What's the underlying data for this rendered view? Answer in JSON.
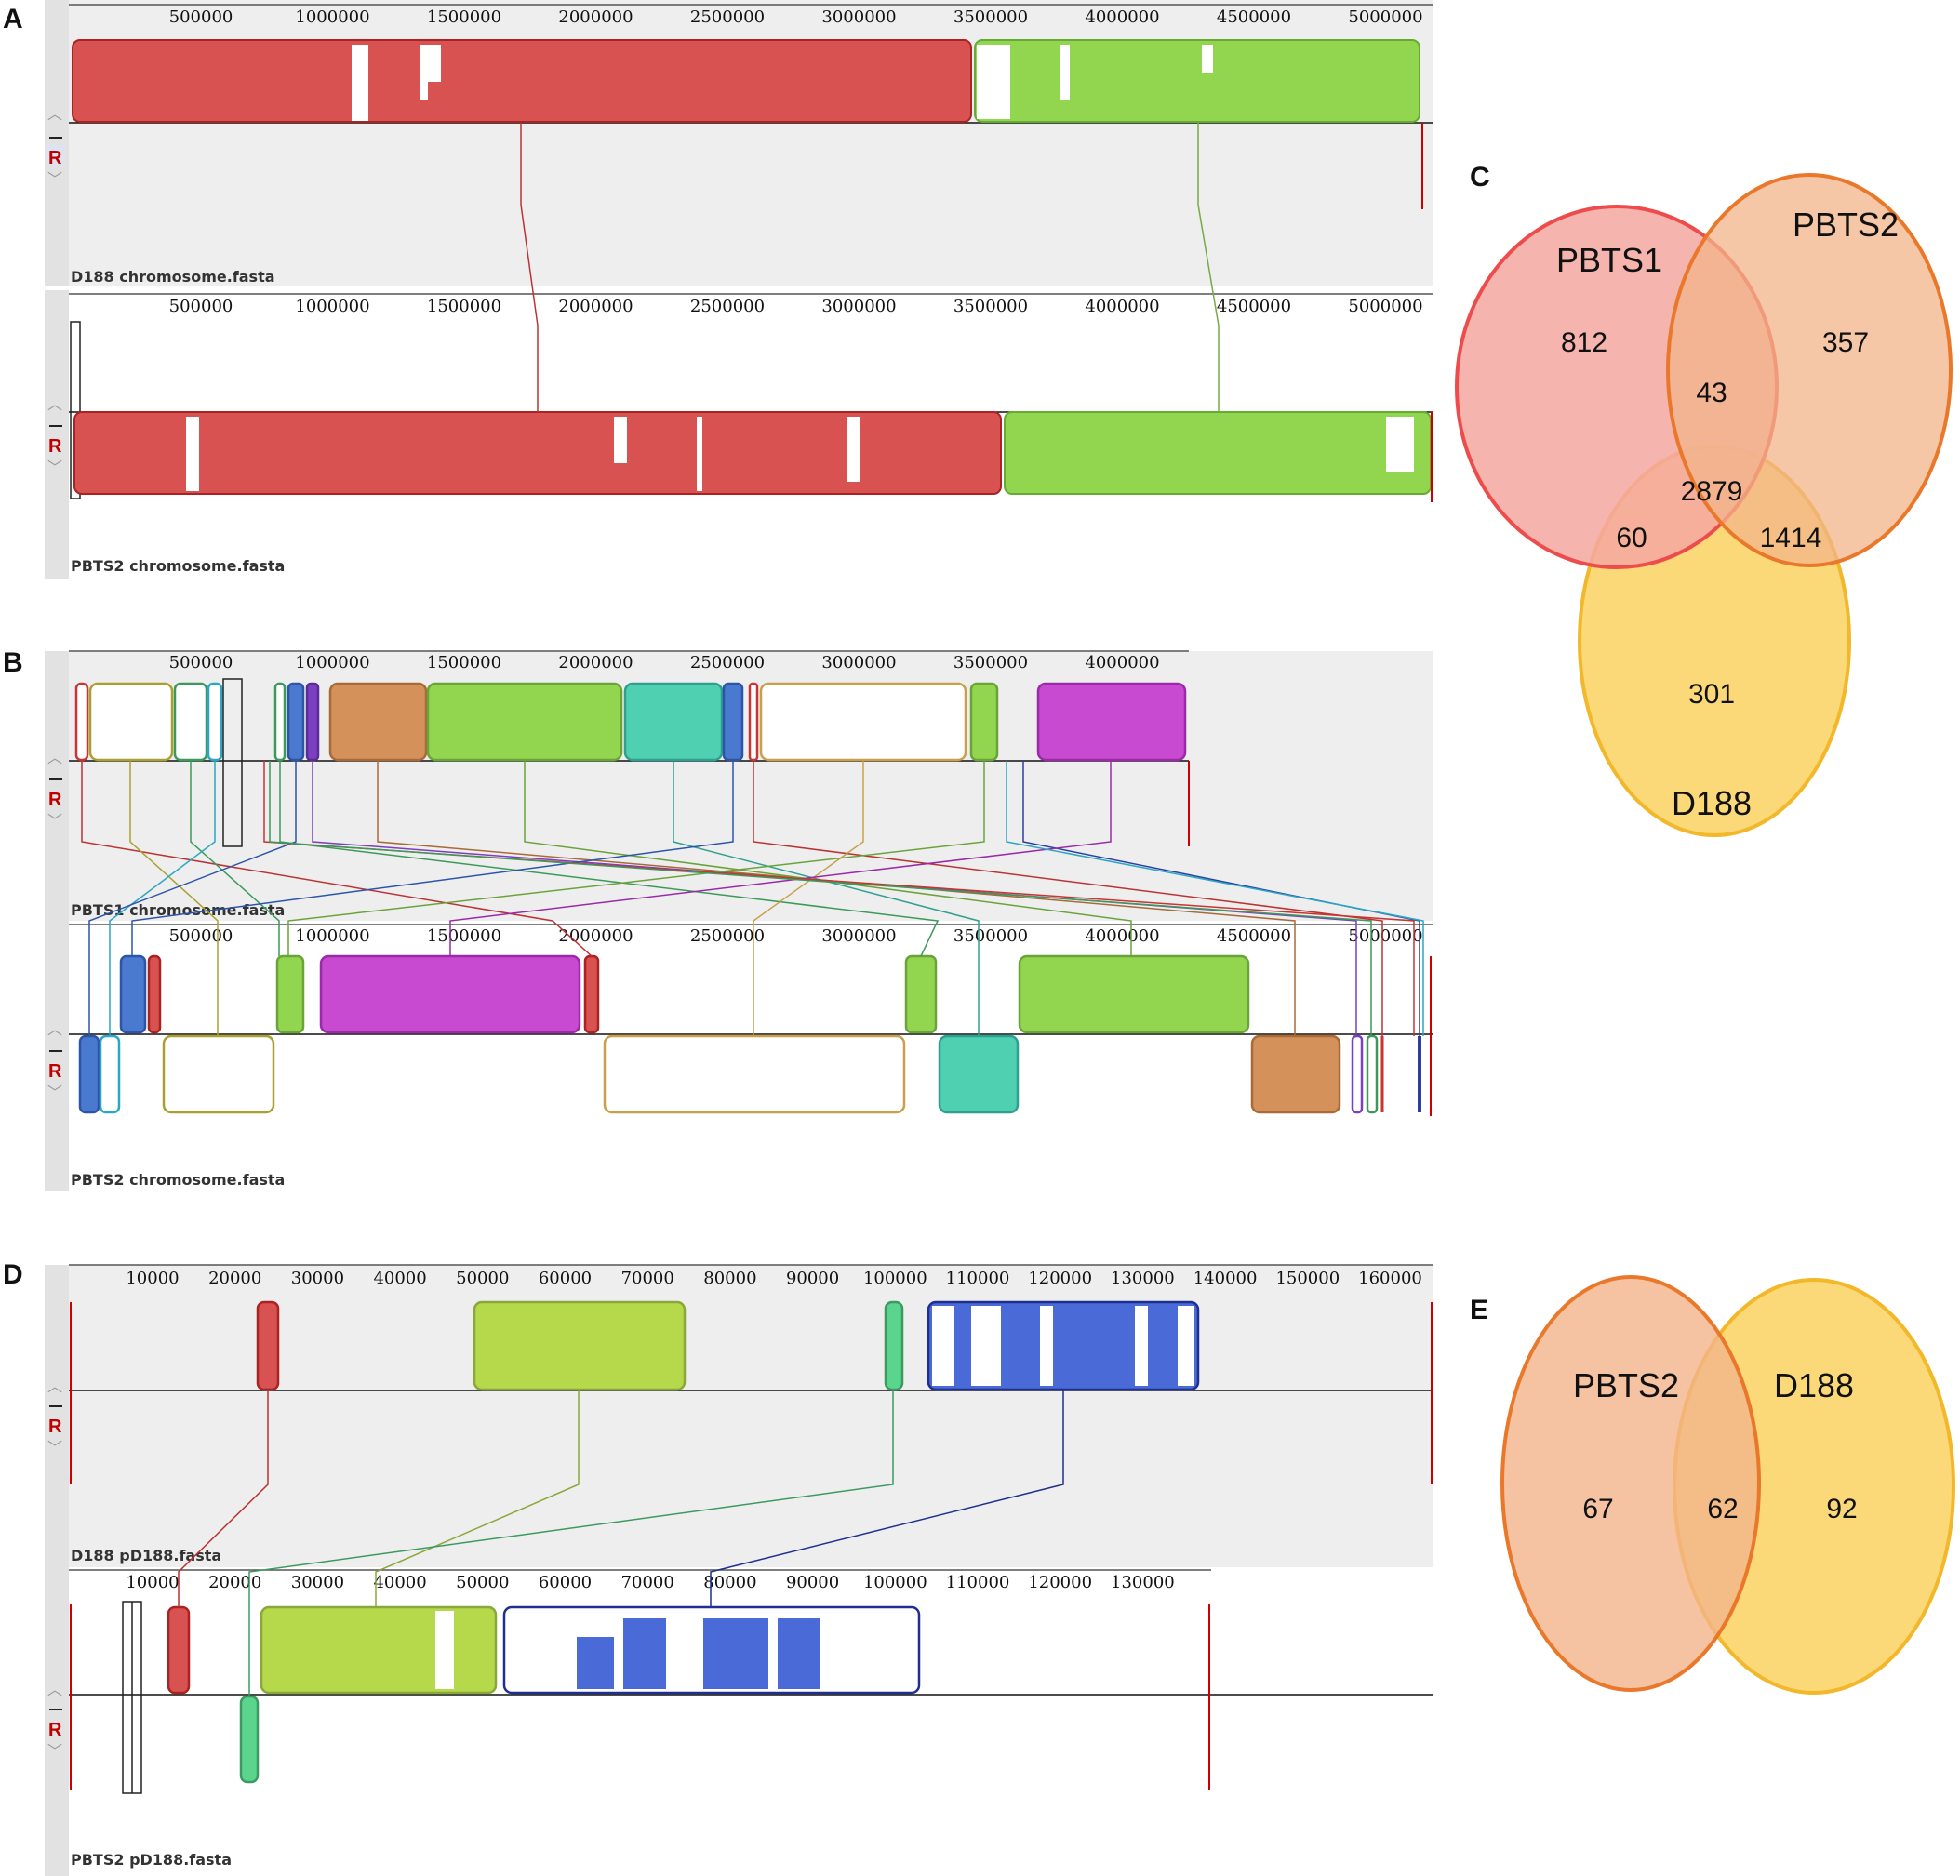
{
  "panel_labels": {
    "a": "A",
    "b": "B",
    "c": "C",
    "d": "D",
    "e": "E"
  },
  "colors": {
    "panel_bg": "#eeeeee",
    "red": "#d95252",
    "green": "#91d64e",
    "olive": "#c8c83c",
    "teal": "#4fd0b0",
    "blue": "#4a7ad0",
    "purple": "#c74ad0",
    "orange": "#d4925a",
    "yellowgreen": "#b5d94a",
    "mint": "#5bd48d",
    "navy": "#2c3fa0",
    "gold": "#d4b44e",
    "violet": "#7b3fc0",
    "cyan": "#2aa7c4",
    "salmon": "#f4a7a0",
    "peach": "#f2b48a",
    "yellow": "#fbd978"
  },
  "panels": [
    {
      "id": "A",
      "genomes": [
        {
          "name": "D188 chromosome.fasta",
          "ticks": [
            "500000",
            "1000000",
            "1500000",
            "2000000",
            "2500000",
            "3000000",
            "3500000",
            "4000000",
            "4500000",
            "5000000"
          ]
        },
        {
          "name": "PBTS2 chromosome.fasta",
          "ticks": [
            "500000",
            "1000000",
            "1500000",
            "2000000",
            "2500000",
            "3000000",
            "3500000",
            "4000000",
            "4500000",
            "5000000"
          ]
        }
      ]
    },
    {
      "id": "B",
      "genomes": [
        {
          "name": "PBTS1 chromosome.fasta",
          "ticks": [
            "500000",
            "1000000",
            "1500000",
            "2000000",
            "2500000",
            "3000000",
            "3500000",
            "4000000"
          ]
        },
        {
          "name": "PBTS2 chromosome.fasta",
          "ticks": [
            "500000",
            "1000000",
            "1500000",
            "2000000",
            "2500000",
            "3000000",
            "3500000",
            "4000000",
            "4500000",
            "5000000"
          ]
        }
      ]
    },
    {
      "id": "D",
      "genomes": [
        {
          "name": "D188 pD188.fasta",
          "ticks": [
            "10000",
            "20000",
            "30000",
            "40000",
            "50000",
            "60000",
            "70000",
            "80000",
            "90000",
            "100000",
            "110000",
            "120000",
            "130000",
            "140000",
            "150000",
            "160000"
          ]
        },
        {
          "name": "PBTS2 pD188.fasta",
          "ticks": [
            "10000",
            "20000",
            "30000",
            "40000",
            "50000",
            "60000",
            "70000",
            "80000",
            "90000",
            "100000",
            "110000",
            "120000",
            "130000"
          ]
        }
      ]
    }
  ],
  "venn_c": {
    "sets": [
      "PBTS1",
      "PBTS2",
      "D188"
    ],
    "regions": {
      "pbts1_only": "812",
      "pbts2_only": "357",
      "d188_only": "301",
      "pbts1_pbts2": "43",
      "pbts1_d188": "60",
      "pbts2_d188": "1414",
      "all_three": "2879"
    }
  },
  "venn_e": {
    "sets": [
      "PBTS2",
      "D188"
    ],
    "regions": {
      "pbts2_only": "67",
      "shared": "62",
      "d188_only": "92"
    }
  },
  "controls": {
    "reverse_label": "R",
    "up_icon": "up-chevron-icon",
    "down_icon": "down-chevron-icon"
  }
}
